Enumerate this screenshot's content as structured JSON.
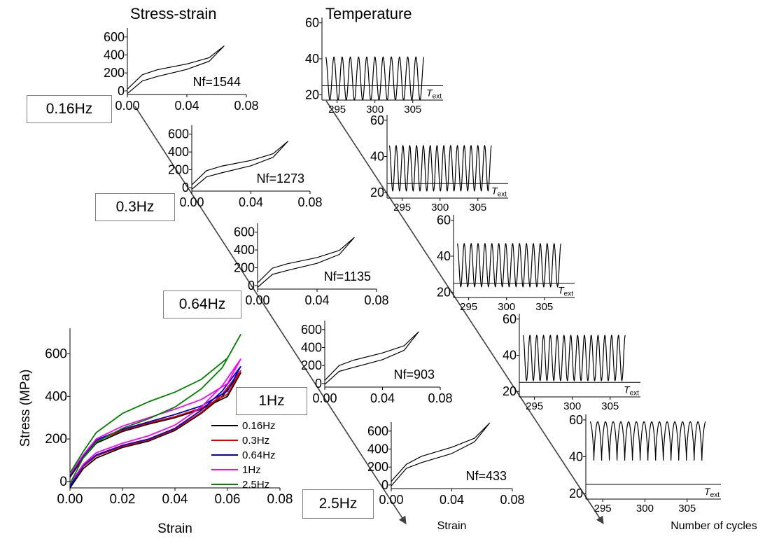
{
  "titles": {
    "stress_strain": "Stress-strain",
    "temperature": "Temperature"
  },
  "frequency_labels": [
    "0.16Hz",
    "0.3Hz",
    "0.64Hz",
    "1Hz",
    "2.5Hz"
  ],
  "axis_texts": {
    "strain": "Strain",
    "number_of_cycles": "Number of cycles",
    "t_ext_main": "T",
    "t_ext_sub": "ext"
  },
  "colors": {
    "0.16Hz": "#000000",
    "0.3Hz": "#e60000",
    "0.64Hz": "#0000cc",
    "1Hz": "#ff00ff",
    "2.5Hz": "#008000",
    "arrow": "#404040"
  },
  "chart_data": [
    {
      "type": "line",
      "title": "",
      "xlabel": "Strain",
      "ylabel": "Stress (MPa)",
      "xlim": [
        0,
        0.08
      ],
      "ylim": [
        -30,
        720
      ],
      "xticks": [
        "0.00",
        "0.02",
        "0.04",
        "0.06",
        "0.08"
      ],
      "yticks": [
        "0",
        "200",
        "400",
        "600"
      ],
      "legend": "lower-right",
      "series": [
        {
          "name": "0.16Hz",
          "loading": [
            [
              0,
              -30
            ],
            [
              0.005,
              60
            ],
            [
              0.01,
              110
            ],
            [
              0.02,
              160
            ],
            [
              0.03,
              190
            ],
            [
              0.04,
              240
            ],
            [
              0.05,
              320
            ],
            [
              0.058,
              400
            ],
            [
              0.065,
              510
            ]
          ],
          "unloading": [
            [
              0.065,
              510
            ],
            [
              0.06,
              400
            ],
            [
              0.05,
              340
            ],
            [
              0.04,
              300
            ],
            [
              0.03,
              270
            ],
            [
              0.02,
              235
            ],
            [
              0.01,
              180
            ],
            [
              0.005,
              110
            ],
            [
              0,
              20
            ]
          ]
        },
        {
          "name": "0.3Hz",
          "loading": [
            [
              0,
              -20
            ],
            [
              0.005,
              70
            ],
            [
              0.01,
              120
            ],
            [
              0.02,
              165
            ],
            [
              0.03,
              195
            ],
            [
              0.04,
              245
            ],
            [
              0.05,
              325
            ],
            [
              0.058,
              410
            ],
            [
              0.065,
              520
            ]
          ],
          "unloading": [
            [
              0.065,
              520
            ],
            [
              0.06,
              410
            ],
            [
              0.05,
              345
            ],
            [
              0.04,
              305
            ],
            [
              0.03,
              275
            ],
            [
              0.02,
              240
            ],
            [
              0.01,
              190
            ],
            [
              0.005,
              115
            ],
            [
              0,
              30
            ]
          ]
        },
        {
          "name": "0.64Hz",
          "loading": [
            [
              0,
              -20
            ],
            [
              0.005,
              75
            ],
            [
              0.01,
              125
            ],
            [
              0.02,
              170
            ],
            [
              0.03,
              200
            ],
            [
              0.04,
              250
            ],
            [
              0.05,
              335
            ],
            [
              0.058,
              425
            ],
            [
              0.065,
              540
            ]
          ],
          "unloading": [
            [
              0.065,
              540
            ],
            [
              0.06,
              425
            ],
            [
              0.05,
              355
            ],
            [
              0.04,
              315
            ],
            [
              0.03,
              280
            ],
            [
              0.02,
              245
            ],
            [
              0.01,
              195
            ],
            [
              0.005,
              120
            ],
            [
              0,
              30
            ]
          ]
        },
        {
          "name": "1Hz",
          "loading": [
            [
              0,
              -10
            ],
            [
              0.005,
              80
            ],
            [
              0.01,
              135
            ],
            [
              0.02,
              180
            ],
            [
              0.03,
              215
            ],
            [
              0.04,
              265
            ],
            [
              0.05,
              350
            ],
            [
              0.058,
              450
            ],
            [
              0.065,
              575
            ]
          ],
          "unloading": [
            [
              0.065,
              575
            ],
            [
              0.06,
              460
            ],
            [
              0.05,
              385
            ],
            [
              0.04,
              340
            ],
            [
              0.03,
              300
            ],
            [
              0.02,
              260
            ],
            [
              0.01,
              200
            ],
            [
              0.005,
              125
            ],
            [
              0,
              35
            ]
          ]
        },
        {
          "name": "2.5Hz",
          "loading": [
            [
              0,
              -10
            ],
            [
              0.005,
              110
            ],
            [
              0.01,
              185
            ],
            [
              0.02,
              250
            ],
            [
              0.03,
              295
            ],
            [
              0.04,
              350
            ],
            [
              0.05,
              435
            ],
            [
              0.058,
              535
            ],
            [
              0.065,
              690
            ]
          ],
          "unloading": [
            [
              0.065,
              690
            ],
            [
              0.06,
              580
            ],
            [
              0.05,
              480
            ],
            [
              0.04,
              420
            ],
            [
              0.03,
              375
            ],
            [
              0.02,
              320
            ],
            [
              0.01,
              230
            ],
            [
              0.005,
              140
            ],
            [
              0,
              40
            ]
          ]
        }
      ]
    },
    {
      "type": "line",
      "title": "",
      "xlabel": "",
      "ylabel": "",
      "xlim": [
        0,
        0.08
      ],
      "ylim": [
        -40,
        700
      ],
      "xticks": [
        "0.00",
        "0.04",
        "0.08"
      ],
      "yticks": [
        "0",
        "200",
        "400",
        "600"
      ],
      "annotation": "Nf=1544",
      "series": [
        {
          "name": "0.16Hz",
          "loading": [
            [
              0,
              -30
            ],
            [
              0.01,
              110
            ],
            [
              0.02,
              160
            ],
            [
              0.04,
              240
            ],
            [
              0.055,
              330
            ],
            [
              0.065,
              500
            ]
          ],
          "unloading": [
            [
              0.065,
              500
            ],
            [
              0.055,
              370
            ],
            [
              0.04,
              300
            ],
            [
              0.02,
              235
            ],
            [
              0.01,
              180
            ],
            [
              0,
              20
            ]
          ]
        }
      ]
    },
    {
      "type": "line",
      "title": "",
      "xlabel": "",
      "ylabel": "",
      "xlim": [
        0,
        0.08
      ],
      "ylim": [
        -40,
        700
      ],
      "xticks": [
        "0.00",
        "0.04",
        "0.08"
      ],
      "yticks": [
        "0",
        "200",
        "400",
        "600"
      ],
      "annotation": "Nf=1273",
      "series": [
        {
          "name": "0.3Hz",
          "loading": [
            [
              0,
              -20
            ],
            [
              0.01,
              120
            ],
            [
              0.02,
              165
            ],
            [
              0.04,
              245
            ],
            [
              0.055,
              340
            ],
            [
              0.065,
              520
            ]
          ],
          "unloading": [
            [
              0.065,
              520
            ],
            [
              0.055,
              380
            ],
            [
              0.04,
              305
            ],
            [
              0.02,
              240
            ],
            [
              0.01,
              190
            ],
            [
              0,
              30
            ]
          ]
        }
      ]
    },
    {
      "type": "line",
      "title": "",
      "xlabel": "",
      "ylabel": "",
      "xlim": [
        0,
        0.08
      ],
      "ylim": [
        -40,
        700
      ],
      "xticks": [
        "0.00",
        "0.04",
        "0.08"
      ],
      "yticks": [
        "0",
        "200",
        "400",
        "600"
      ],
      "annotation": "Nf=1135",
      "series": [
        {
          "name": "0.64Hz",
          "loading": [
            [
              0,
              -20
            ],
            [
              0.01,
              125
            ],
            [
              0.02,
              170
            ],
            [
              0.04,
              250
            ],
            [
              0.055,
              350
            ],
            [
              0.065,
              540
            ]
          ],
          "unloading": [
            [
              0.065,
              540
            ],
            [
              0.055,
              395
            ],
            [
              0.04,
              315
            ],
            [
              0.02,
              245
            ],
            [
              0.01,
              195
            ],
            [
              0,
              30
            ]
          ]
        }
      ]
    },
    {
      "type": "line",
      "title": "",
      "xlabel": "",
      "ylabel": "",
      "xlim": [
        0,
        0.08
      ],
      "ylim": [
        -40,
        700
      ],
      "xticks": [
        "0.00",
        "0.04",
        "0.08"
      ],
      "yticks": [
        "0",
        "200",
        "400",
        "600"
      ],
      "annotation": "Nf=903",
      "series": [
        {
          "name": "1Hz",
          "loading": [
            [
              0,
              -10
            ],
            [
              0.01,
              135
            ],
            [
              0.02,
              180
            ],
            [
              0.04,
              265
            ],
            [
              0.055,
              370
            ],
            [
              0.065,
              575
            ]
          ],
          "unloading": [
            [
              0.065,
              575
            ],
            [
              0.055,
              420
            ],
            [
              0.04,
              340
            ],
            [
              0.02,
              260
            ],
            [
              0.01,
              200
            ],
            [
              0,
              35
            ]
          ]
        }
      ]
    },
    {
      "type": "line",
      "title": "",
      "xlabel": "Strain",
      "ylabel": "",
      "xlim": [
        0,
        0.08
      ],
      "ylim": [
        -40,
        700
      ],
      "xticks": [
        "0.00",
        "0.04",
        "0.08"
      ],
      "yticks": [
        "0",
        "200",
        "400",
        "600"
      ],
      "annotation": "Nf=433",
      "series": [
        {
          "name": "2.5Hz",
          "loading": [
            [
              0,
              -10
            ],
            [
              0.01,
              185
            ],
            [
              0.02,
              250
            ],
            [
              0.04,
              350
            ],
            [
              0.055,
              480
            ],
            [
              0.065,
              690
            ]
          ],
          "unloading": [
            [
              0.065,
              690
            ],
            [
              0.055,
              520
            ],
            [
              0.04,
              420
            ],
            [
              0.02,
              320
            ],
            [
              0.01,
              230
            ],
            [
              0,
              40
            ]
          ]
        }
      ]
    },
    {
      "type": "line",
      "title": "",
      "xlabel": "",
      "ylabel": "",
      "xlim": [
        293,
        309
      ],
      "ylim": [
        17,
        63
      ],
      "xticks": [
        "295",
        "300",
        "305"
      ],
      "yticks": [
        "20",
        "40",
        "60"
      ],
      "reference_line": {
        "label": "T_ext",
        "y": 25
      },
      "oscillation": {
        "frequency_hz": 0.16,
        "min": 17,
        "max": 41,
        "x_start": 293.5,
        "x_end": 306.5,
        "cycles": 12
      }
    },
    {
      "type": "line",
      "title": "",
      "xlabel": "",
      "ylabel": "",
      "xlim": [
        293,
        309
      ],
      "ylim": [
        17,
        63
      ],
      "xticks": [
        "295",
        "300",
        "305"
      ],
      "yticks": [
        "20",
        "40",
        "60"
      ],
      "reference_line": {
        "label": "T_ext",
        "y": 25
      },
      "oscillation": {
        "frequency_hz": 0.3,
        "min": 21,
        "max": 46,
        "x_start": 293.3,
        "x_end": 306.8,
        "cycles": 15
      }
    },
    {
      "type": "line",
      "title": "",
      "xlabel": "",
      "ylabel": "",
      "xlim": [
        293,
        309
      ],
      "ylim": [
        17,
        63
      ],
      "xticks": [
        "295",
        "300",
        "305"
      ],
      "yticks": [
        "20",
        "40",
        "60"
      ],
      "reference_line": {
        "label": "T_ext",
        "y": 25
      },
      "oscillation": {
        "frequency_hz": 0.64,
        "min": 23,
        "max": 47,
        "x_start": 293.5,
        "x_end": 307.2,
        "cycles": 15
      }
    },
    {
      "type": "line",
      "title": "",
      "xlabel": "",
      "ylabel": "",
      "xlim": [
        293,
        309
      ],
      "ylim": [
        17,
        63
      ],
      "xticks": [
        "295",
        "300",
        "305"
      ],
      "yticks": [
        "20",
        "40",
        "60"
      ],
      "reference_line": {
        "label": "T_ext",
        "y": 25
      },
      "oscillation": {
        "frequency_hz": 1.0,
        "min": 26,
        "max": 51,
        "x_start": 293.5,
        "x_end": 307.0,
        "cycles": 15
      }
    },
    {
      "type": "line",
      "title": "",
      "xlabel": "Number of cycles",
      "ylabel": "",
      "xlim": [
        293,
        309
      ],
      "ylim": [
        17,
        63
      ],
      "xticks": [
        "295",
        "300",
        "305"
      ],
      "yticks": [
        "20",
        "40",
        "60"
      ],
      "reference_line": {
        "label": "T_ext",
        "y": 25
      },
      "oscillation": {
        "frequency_hz": 2.5,
        "min": 38,
        "max": 59,
        "x_start": 293.5,
        "x_end": 307.2,
        "cycles": 15
      }
    }
  ]
}
